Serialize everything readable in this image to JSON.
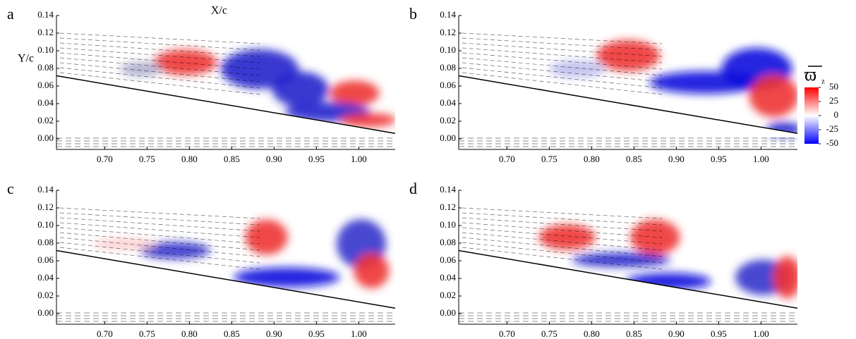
{
  "chart_data": [
    {
      "type": "contour",
      "panel_label": "a",
      "xlabel": "X/c",
      "ylabel": "Y/c",
      "xlim": [
        0.643,
        1.043
      ],
      "ylim": [
        -0.012,
        0.14
      ],
      "xticks": [
        {
          "value": 0.7,
          "label": "0.70"
        },
        0.75,
        {
          "value": 0.8,
          "label": "0.80"
        },
        0.85,
        {
          "value": 0.9,
          "label": "0.90"
        },
        0.95,
        {
          "value": 1.0,
          "label": "1.00"
        }
      ],
      "yticks": [
        {
          "value": 0,
          "label": "0.00"
        },
        0.02,
        0.04,
        0.06,
        0.08,
        {
          "value": 0.1,
          "label": "0.10"
        },
        0.12,
        0.14
      ]
    },
    {
      "type": "contour",
      "panel_label": "b",
      "xlim": [
        0.643,
        1.043
      ],
      "ylim": [
        -0.012,
        0.14
      ],
      "xticks": [
        {
          "value": 0.7,
          "label": "0.70"
        },
        0.75,
        {
          "value": 0.8,
          "label": "0.80"
        },
        0.85,
        {
          "value": 0.9,
          "label": "0.90"
        },
        0.95,
        {
          "value": 1.0,
          "label": "1.00"
        }
      ],
      "yticks": [
        {
          "value": 0,
          "label": "0.00"
        },
        0.02,
        0.04,
        0.06,
        0.08,
        {
          "value": 0.1,
          "label": "0.10"
        },
        0.12,
        0.14
      ]
    },
    {
      "type": "contour",
      "panel_label": "c",
      "xlim": [
        0.643,
        1.043
      ],
      "ylim": [
        -0.012,
        0.14
      ],
      "xticks": [
        {
          "value": 0.7,
          "label": "0.70"
        },
        0.75,
        {
          "value": 0.8,
          "label": "0.80"
        },
        0.85,
        {
          "value": 0.9,
          "label": "0.90"
        },
        0.95,
        {
          "value": 1.0,
          "label": "1.00"
        }
      ],
      "yticks": [
        {
          "value": 0,
          "label": "0.00"
        },
        0.02,
        0.04,
        0.06,
        0.08,
        {
          "value": 0.1,
          "label": "0.10"
        },
        0.12,
        0.14
      ]
    },
    {
      "type": "contour",
      "panel_label": "d",
      "xlim": [
        0.643,
        1.043
      ],
      "ylim": [
        -0.012,
        0.14
      ],
      "xticks": [
        {
          "value": 0.7,
          "label": "0.70"
        },
        0.75,
        {
          "value": 0.8,
          "label": "0.80"
        },
        0.85,
        {
          "value": 0.9,
          "label": "0.90"
        },
        0.95,
        {
          "value": 1.0,
          "label": "1.00"
        }
      ],
      "yticks": [
        {
          "value": 0,
          "label": "0.00"
        },
        0.02,
        0.04,
        0.06,
        0.08,
        {
          "value": 0.1,
          "label": "0.10"
        },
        0.12,
        0.14
      ]
    }
  ],
  "colorbar": {
    "symbol": "ϖ",
    "subscript": "z",
    "lim": [
      -50,
      50
    ],
    "ticks": [
      50,
      25,
      0,
      -25,
      -50
    ],
    "colors": [
      "#0000ff",
      "#ffffff",
      "#ff0000"
    ]
  }
}
